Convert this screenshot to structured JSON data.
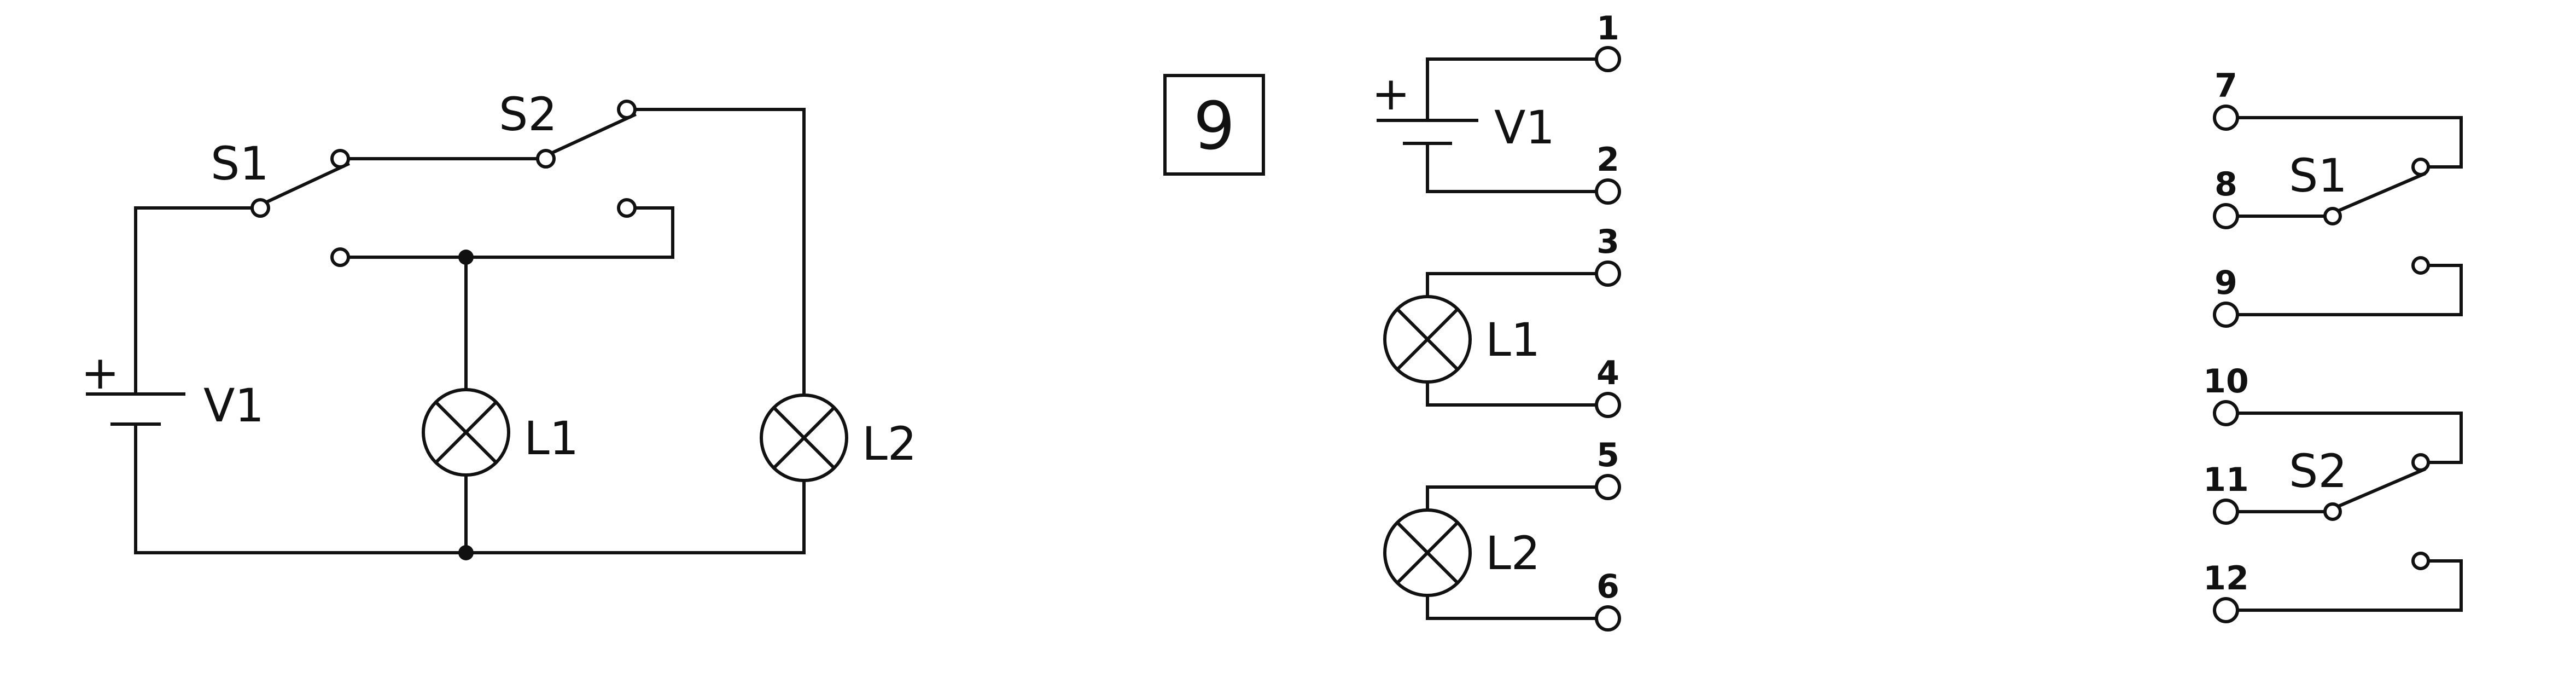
{
  "schematic": {
    "v1_label": "V1",
    "v1_plus": "+",
    "s1_label": "S1",
    "s2_label": "S2",
    "l1_label": "L1",
    "l2_label": "L2"
  },
  "exercise": {
    "number": "9"
  },
  "components": {
    "v1": {
      "label": "V1",
      "plus": "+",
      "terminals": [
        "1",
        "2"
      ]
    },
    "l1": {
      "label": "L1",
      "terminals": [
        "3",
        "4"
      ]
    },
    "l2": {
      "label": "L2",
      "terminals": [
        "5",
        "6"
      ]
    },
    "s1": {
      "label": "S1",
      "terminals": [
        "7",
        "8",
        "9"
      ]
    },
    "s2": {
      "label": "S2",
      "terminals": [
        "10",
        "11",
        "12"
      ]
    }
  }
}
